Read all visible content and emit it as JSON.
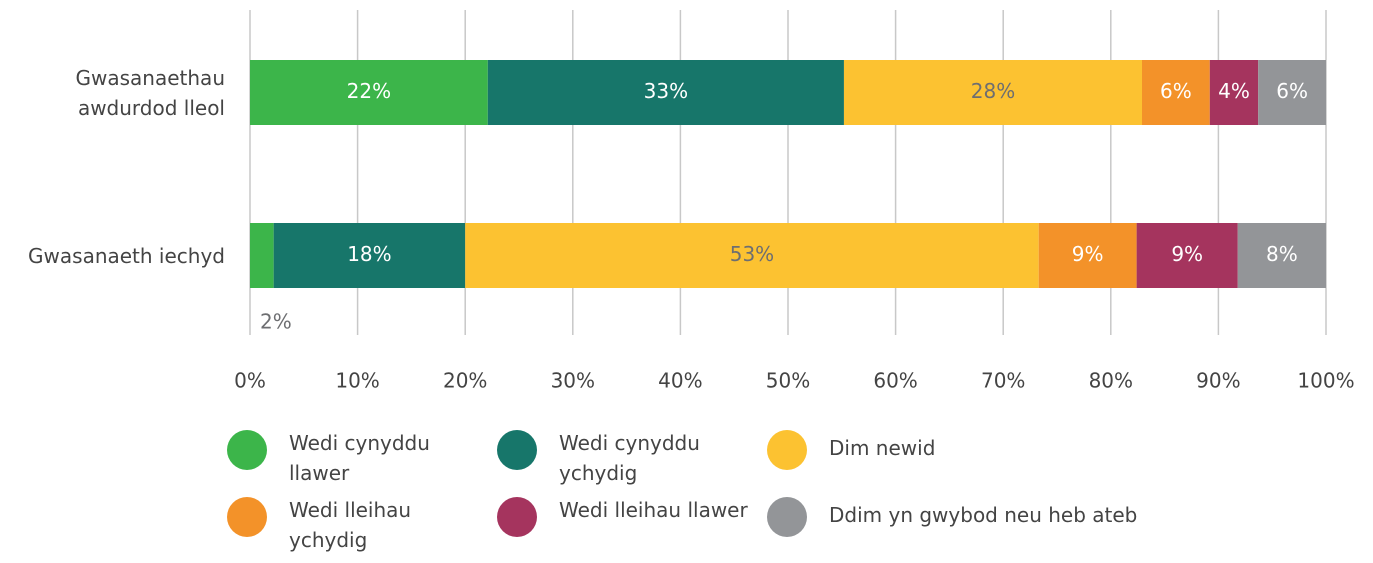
{
  "chart_data": {
    "type": "stacked-bar-horizontal",
    "categories": [
      "Gwasanaethau awdurdod lleol",
      "Gwasanaeth iechyd"
    ],
    "series": [
      {
        "name": "Wedi cynyddu llawer",
        "color": "#3cb54a",
        "values": [
          22.1,
          2.2
        ],
        "value_labels": [
          "22%",
          "2%"
        ]
      },
      {
        "name": "Wedi cynyddu ychydig",
        "color": "#17766a",
        "values": [
          33.1,
          17.8
        ],
        "value_labels": [
          "33%",
          "18%"
        ]
      },
      {
        "name": "Dim newid",
        "color": "#fcc231",
        "values": [
          27.7,
          53.3
        ],
        "value_labels": [
          "28%",
          "53%"
        ]
      },
      {
        "name": "Wedi lleihau ychydig",
        "color": "#f39229",
        "values": [
          6.3,
          9.1
        ],
        "value_labels": [
          "6%",
          "9%"
        ]
      },
      {
        "name": "Wedi lleihau llawer",
        "color": "#a5345e",
        "values": [
          4.5,
          9.4
        ],
        "value_labels": [
          "4%",
          "9%"
        ]
      },
      {
        "name": "Ddim yn gwybod neu heb ateb",
        "color": "#939598",
        "values": [
          6.3,
          8.2
        ],
        "value_labels": [
          "6%",
          "8%"
        ]
      }
    ],
    "xlim": [
      0,
      100
    ],
    "xticks": [
      {
        "value": 0,
        "label": "0%"
      },
      {
        "value": 10,
        "label": "10%"
      },
      {
        "value": 20,
        "label": "20%"
      },
      {
        "value": 30,
        "label": "30%"
      },
      {
        "value": 40,
        "label": "40%"
      },
      {
        "value": 50,
        "label": "50%"
      },
      {
        "value": 60,
        "label": "60%"
      },
      {
        "value": 70,
        "label": "70%"
      },
      {
        "value": 80,
        "label": "80%"
      },
      {
        "value": 90,
        "label": "90%"
      },
      {
        "value": 100,
        "label": "100%"
      }
    ],
    "grid": true
  }
}
